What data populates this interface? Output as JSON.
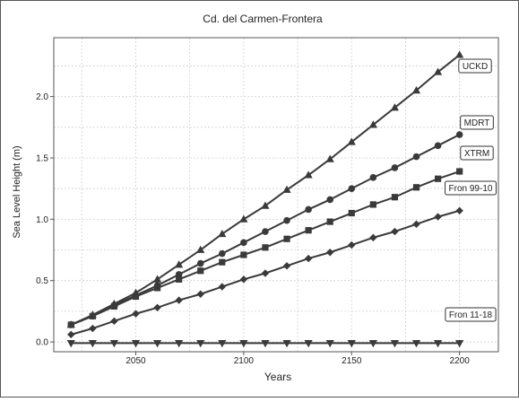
{
  "chart_data": {
    "type": "line",
    "title": "Cd. del Carmen-Frontera",
    "xlabel": "Years",
    "ylabel": "Sea Level Height (m)",
    "xlim": [
      2012,
      2218
    ],
    "ylim": [
      -0.08,
      2.48
    ],
    "xticks": [
      2050,
      2100,
      2150,
      2200
    ],
    "xtick_labels": [
      "2050",
      "2100",
      "2150",
      "2200"
    ],
    "yticks": [
      0.0,
      0.5,
      1.0,
      1.5,
      2.0
    ],
    "ytick_labels": [
      "0.0",
      "0.5",
      "1.0",
      "1.5",
      "2.0"
    ],
    "grid": true,
    "legend": "direct labels at line ends",
    "x": [
      2020,
      2030,
      2040,
      2050,
      2060,
      2070,
      2080,
      2090,
      2100,
      2110,
      2120,
      2130,
      2140,
      2150,
      2160,
      2170,
      2180,
      2190,
      2200
    ],
    "series": [
      {
        "name": "UCKD",
        "marker": "triangle-up",
        "values": [
          0.14,
          0.22,
          0.31,
          0.4,
          0.51,
          0.63,
          0.75,
          0.88,
          1.0,
          1.11,
          1.24,
          1.36,
          1.49,
          1.63,
          1.77,
          1.91,
          2.05,
          2.2,
          2.34
        ]
      },
      {
        "name": "MDRT",
        "marker": "circle",
        "values": [
          0.14,
          0.21,
          0.3,
          0.38,
          0.46,
          0.55,
          0.64,
          0.72,
          0.81,
          0.9,
          0.99,
          1.08,
          1.16,
          1.25,
          1.34,
          1.42,
          1.51,
          1.6,
          1.69
        ]
      },
      {
        "name": "XTRM",
        "marker": "square",
        "values": [
          0.14,
          0.21,
          0.29,
          0.37,
          0.44,
          0.51,
          0.58,
          0.65,
          0.71,
          0.77,
          0.84,
          0.91,
          0.98,
          1.05,
          1.12,
          1.18,
          1.26,
          1.33,
          1.39
        ]
      },
      {
        "name": "Fron 99-10",
        "marker": "diamond",
        "values": [
          0.06,
          0.11,
          0.17,
          0.23,
          0.28,
          0.34,
          0.39,
          0.45,
          0.51,
          0.56,
          0.62,
          0.68,
          0.73,
          0.79,
          0.85,
          0.9,
          0.96,
          1.02,
          1.07
        ]
      },
      {
        "name": "Fron 11-18",
        "marker": "triangle-down",
        "values": [
          -0.01,
          -0.01,
          -0.01,
          -0.01,
          -0.01,
          -0.01,
          -0.01,
          -0.01,
          -0.01,
          -0.01,
          -0.01,
          -0.01,
          -0.01,
          -0.01,
          -0.01,
          -0.01,
          -0.01,
          -0.01,
          -0.01
        ]
      }
    ],
    "colors": {
      "line": "#3a3a3a",
      "grid": "#d0d0d0",
      "frame": "#555555"
    }
  }
}
